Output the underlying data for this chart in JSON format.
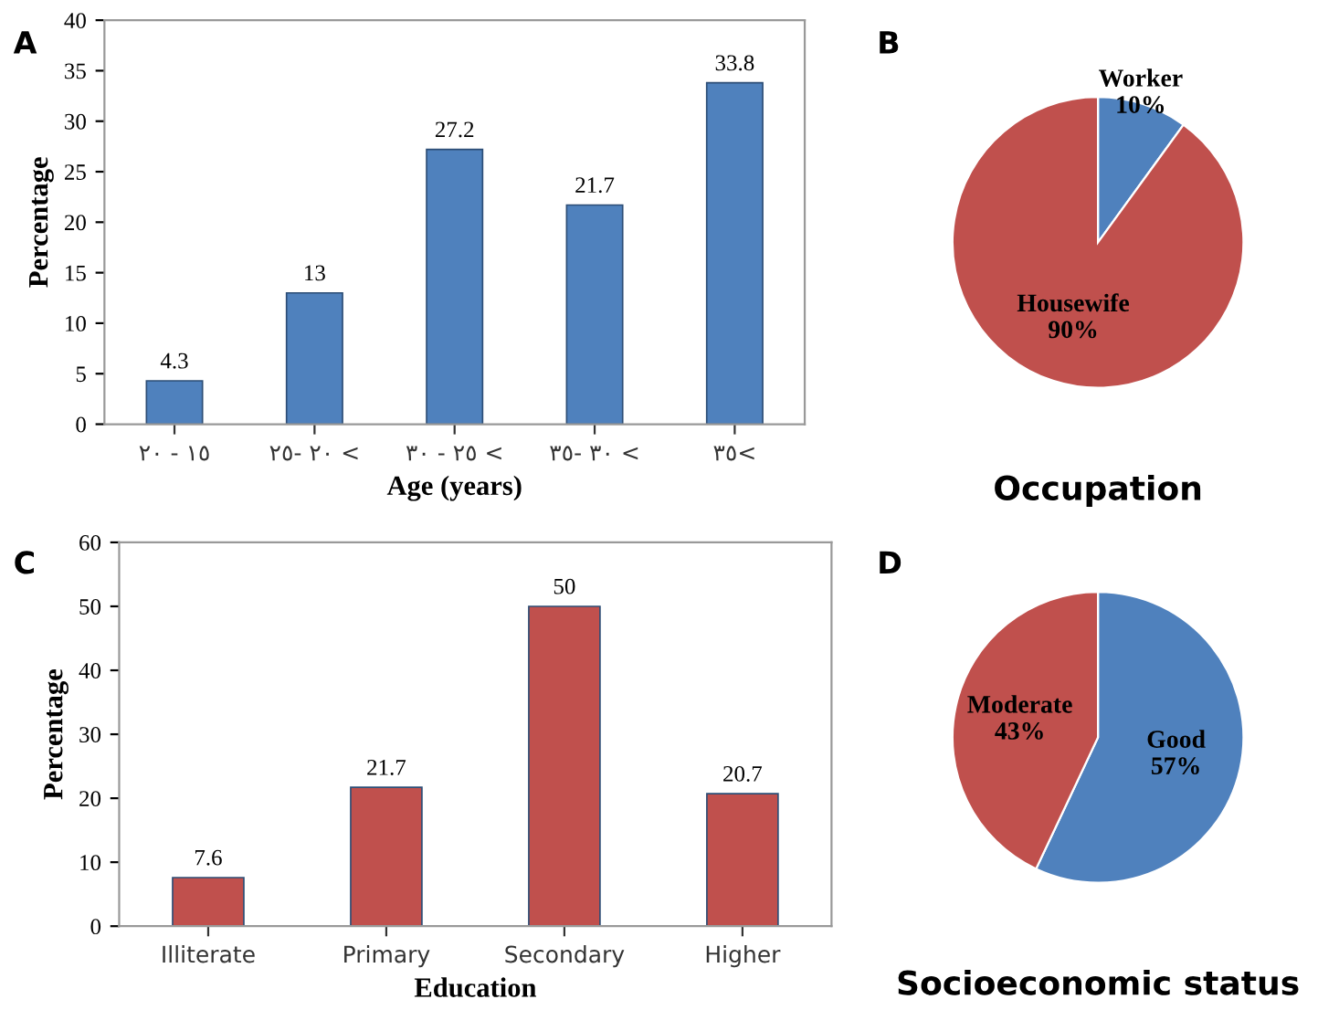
{
  "chart_data": [
    {
      "type": "bar",
      "annotations": [
        "A"
      ],
      "xlabel": "Age (years)",
      "ylabel": "Percentage",
      "categories": [
        "٢٠ - ١٥",
        "٢٥- ٢٠ <",
        "٣٠ - ٢٥ <",
        "٣٥- ٣٠ <",
        "٣٥<"
      ],
      "values": [
        4.3,
        13,
        27.2,
        21.7,
        33.8
      ],
      "color": "#4f81bd",
      "data_labels": true,
      "ylim": [
        0,
        40
      ],
      "yticks": [
        0,
        5,
        10,
        15,
        20,
        25,
        30,
        35,
        40
      ]
    },
    {
      "type": "pie",
      "annotations": [
        "B"
      ],
      "title": "Occupation",
      "categories": [
        "Worker",
        "Housewife"
      ],
      "values": [
        10,
        90
      ],
      "value_labels": [
        "10%",
        "90%"
      ],
      "colors": [
        "#4f81bd",
        "#c0504d"
      ]
    },
    {
      "type": "bar",
      "annotations": [
        "C"
      ],
      "xlabel": "Education",
      "ylabel": "Percentage",
      "categories": [
        "Illiterate",
        "Primary",
        "Secondary",
        "Higher"
      ],
      "values": [
        7.6,
        21.7,
        50,
        20.7
      ],
      "color": "#c0504d",
      "data_labels": true,
      "ylim": [
        0,
        60
      ],
      "yticks": [
        0,
        10,
        20,
        30,
        40,
        50,
        60
      ]
    },
    {
      "type": "pie",
      "annotations": [
        "D"
      ],
      "title": "Socioeconomic status",
      "categories": [
        "Good",
        "Moderate"
      ],
      "values": [
        57,
        43
      ],
      "value_labels": [
        "57%",
        "43%"
      ],
      "colors": [
        "#4f81bd",
        "#c0504d"
      ]
    }
  ]
}
